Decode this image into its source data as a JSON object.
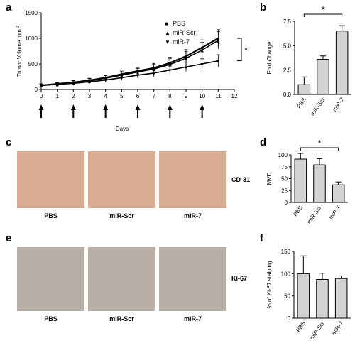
{
  "panels": {
    "a": "a",
    "b": "b",
    "c": "c",
    "d": "d",
    "e": "e",
    "f": "f"
  },
  "chart_data": [
    {
      "panel": "a",
      "type": "line",
      "xlabel": "Days",
      "ylabel": "Tumor Volume mm",
      "ylabel_sup": "3",
      "xlim": [
        0,
        12
      ],
      "ylim": [
        0,
        1500
      ],
      "xticks": [
        0,
        1,
        2,
        3,
        4,
        5,
        6,
        7,
        8,
        9,
        10,
        11,
        12
      ],
      "yticks": [
        0,
        500,
        1000,
        1500
      ],
      "series": [
        {
          "name": "PBS",
          "marker": "square",
          "x": [
            0,
            1,
            2,
            3,
            4,
            5,
            6,
            7,
            8,
            9,
            10,
            11
          ],
          "y": [
            80,
            110,
            140,
            180,
            230,
            300,
            360,
            420,
            520,
            650,
            820,
            1000
          ],
          "err": [
            30,
            30,
            35,
            40,
            50,
            60,
            70,
            90,
            110,
            130,
            150,
            170
          ]
        },
        {
          "name": "miR-Scr",
          "marker": "triangle-up",
          "x": [
            0,
            1,
            2,
            3,
            4,
            5,
            6,
            7,
            8,
            9,
            10,
            11
          ],
          "y": [
            80,
            105,
            135,
            170,
            220,
            280,
            340,
            400,
            490,
            610,
            770,
            960
          ],
          "err": [
            30,
            30,
            35,
            40,
            50,
            60,
            70,
            90,
            110,
            130,
            150,
            170
          ]
        },
        {
          "name": "miR-7",
          "marker": "triangle-down",
          "x": [
            0,
            1,
            2,
            3,
            4,
            5,
            6,
            7,
            8,
            9,
            10,
            11
          ],
          "y": [
            80,
            100,
            120,
            150,
            185,
            230,
            280,
            320,
            380,
            440,
            500,
            560
          ],
          "err": [
            25,
            25,
            30,
            35,
            40,
            50,
            60,
            70,
            80,
            90,
            100,
            120
          ]
        }
      ],
      "injection_days": [
        0,
        2,
        4,
        6,
        8,
        10
      ],
      "significance": "*"
    },
    {
      "panel": "b",
      "type": "bar",
      "ylabel": "Fold Change",
      "categories": [
        "PBS",
        "miR-Scr",
        "miR-7"
      ],
      "values": [
        1.0,
        3.6,
        6.5
      ],
      "errors": [
        0.8,
        0.35,
        0.55
      ],
      "ylim": [
        0,
        7.5
      ],
      "yticks": [
        0.0,
        2.5,
        5.0,
        7.5
      ],
      "ytick_labels": [
        "0.0",
        "2.5",
        "5.0",
        "7.5"
      ],
      "significance": "*"
    },
    {
      "panel": "d",
      "type": "bar",
      "ylabel": "MVD",
      "categories": [
        "PBS",
        "miR-Scr",
        "miR-7"
      ],
      "values": [
        91,
        79,
        37
      ],
      "errors": [
        12,
        13,
        6
      ],
      "ylim": [
        0,
        100
      ],
      "yticks": [
        0,
        25,
        50,
        75,
        100
      ],
      "ytick_labels": [
        "0",
        "25",
        "50",
        "75",
        "100"
      ],
      "significance": "*"
    },
    {
      "panel": "f",
      "type": "bar",
      "ylabel": "% of Ki-67 staining",
      "categories": [
        "PBS",
        "miR-Scr",
        "miR-7"
      ],
      "values": [
        100,
        87,
        89
      ],
      "errors": [
        40,
        14,
        6
      ],
      "ylim": [
        0,
        150
      ],
      "yticks": [
        0,
        50,
        100,
        150
      ],
      "ytick_labels": [
        "0",
        "50",
        "100",
        "150"
      ]
    }
  ],
  "images_c": {
    "labels": [
      "PBS",
      "miR-Scr",
      "miR-7"
    ],
    "marker": "CD-31"
  },
  "images_e": {
    "labels": [
      "PBS",
      "miR-Scr",
      "miR-7"
    ],
    "marker": "Ki-67"
  },
  "colors": {
    "bar_fill": "#d3d3d3",
    "stroke": "#000000",
    "cd31_bg": "#d8ac93",
    "ki67_bg": "#b7afa6"
  }
}
